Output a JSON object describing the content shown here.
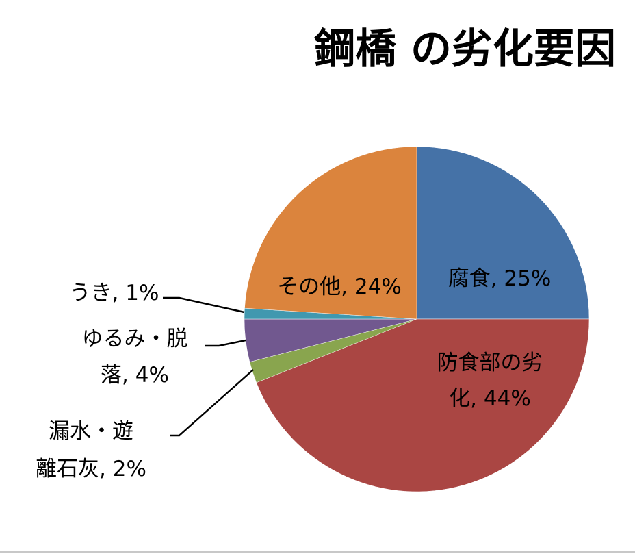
{
  "chart_data": {
    "type": "pie",
    "title": "鋼橋 の劣化要因",
    "slices": [
      {
        "label": "腐食",
        "value": 25,
        "value_label": "25%",
        "color": "#4572A7"
      },
      {
        "label": "防食部の劣化",
        "value": 44,
        "value_label": "44%",
        "color": "#AA4643"
      },
      {
        "label": "漏水・遊離石灰",
        "value": 2,
        "value_label": "2%",
        "color": "#89A54E"
      },
      {
        "label": "ゆるみ・脱落",
        "value": 4,
        "value_label": "4%",
        "color": "#71588F"
      },
      {
        "label": "うき",
        "value": 1,
        "value_label": "1%",
        "color": "#4198AF"
      },
      {
        "label": "その他",
        "value": 24,
        "value_label": "24%",
        "color": "#DB843D"
      }
    ],
    "start_angle_deg": 0,
    "direction": "clockwise",
    "legend": "none"
  }
}
